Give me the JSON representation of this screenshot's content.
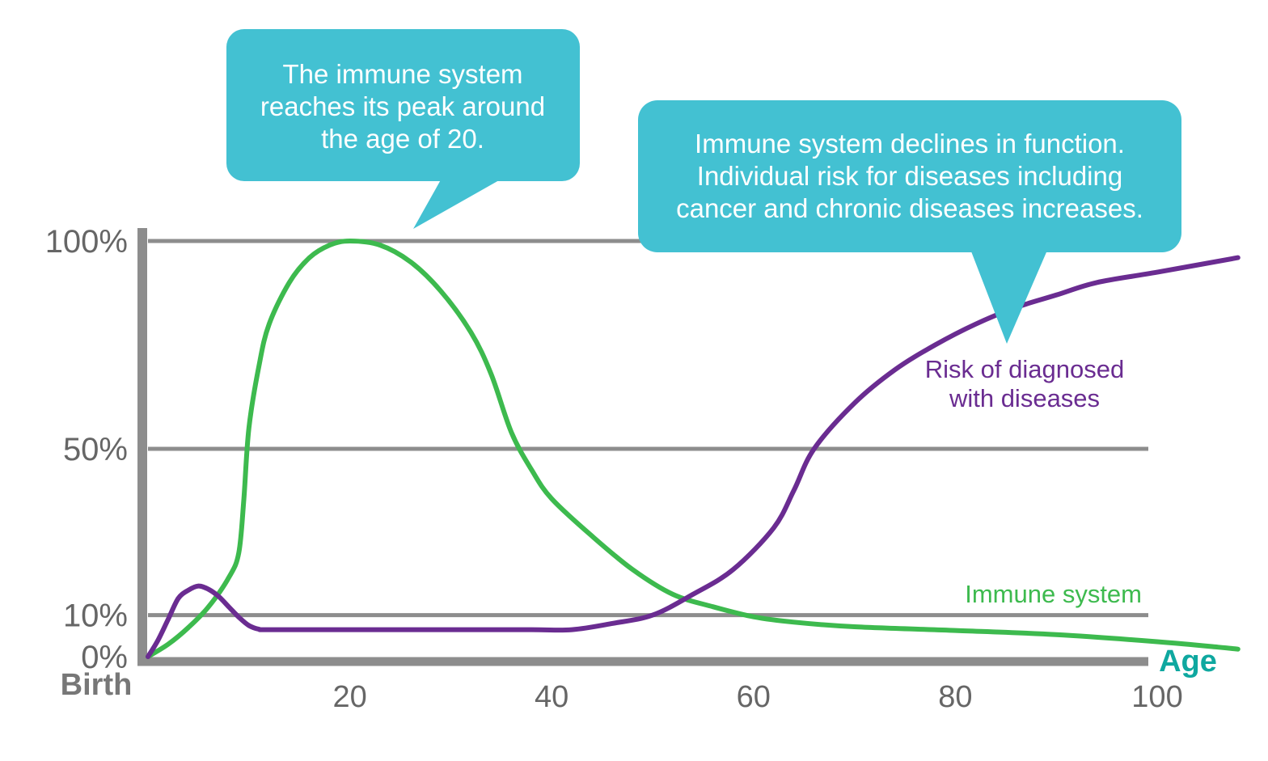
{
  "chart_data": {
    "type": "line",
    "xlabel": "Age",
    "x_origin_label": "Birth",
    "xlim": [
      0,
      108
    ],
    "ylim": [
      0,
      100
    ],
    "x_ticks": [
      20,
      40,
      60,
      80,
      100
    ],
    "x_tick_labels": [
      "20",
      "40",
      "60",
      "80",
      "100"
    ],
    "y_ticks": [
      0,
      10,
      50,
      100
    ],
    "y_tick_labels": [
      "0%",
      "10%",
      "50%",
      "100%"
    ],
    "grid": true,
    "series": [
      {
        "name": "Immune system",
        "color": "#3dba4e",
        "points": [
          [
            0,
            0
          ],
          [
            2,
            3
          ],
          [
            4,
            7
          ],
          [
            6,
            12
          ],
          [
            8,
            19
          ],
          [
            9,
            25
          ],
          [
            9.5,
            38
          ],
          [
            10,
            55
          ],
          [
            11,
            70
          ],
          [
            12,
            80
          ],
          [
            14,
            90
          ],
          [
            16,
            96
          ],
          [
            18,
            99
          ],
          [
            20,
            100
          ],
          [
            23,
            99
          ],
          [
            26,
            95
          ],
          [
            29,
            88
          ],
          [
            32,
            78
          ],
          [
            34,
            68
          ],
          [
            36,
            54
          ],
          [
            38,
            45
          ],
          [
            40,
            38
          ],
          [
            44,
            29
          ],
          [
            48,
            21
          ],
          [
            52,
            15
          ],
          [
            56,
            12
          ],
          [
            60,
            9.6
          ],
          [
            64,
            8.3
          ],
          [
            70,
            7.2
          ],
          [
            80,
            6.3
          ],
          [
            90,
            5.3
          ],
          [
            100,
            3.6
          ],
          [
            106,
            2.3
          ],
          [
            108,
            1.8
          ]
        ]
      },
      {
        "name": "Risk of diagnosed with diseases",
        "color": "#6a2c91",
        "points": [
          [
            0,
            0
          ],
          [
            1,
            4
          ],
          [
            2,
            9
          ],
          [
            3,
            14
          ],
          [
            4,
            16
          ],
          [
            5,
            17
          ],
          [
            6,
            16.2
          ],
          [
            7,
            14.5
          ],
          [
            8,
            12
          ],
          [
            9,
            9.5
          ],
          [
            10,
            7.5
          ],
          [
            11,
            6.6
          ],
          [
            12,
            6.5
          ],
          [
            20,
            6.5
          ],
          [
            30,
            6.5
          ],
          [
            38,
            6.5
          ],
          [
            42,
            6.5
          ],
          [
            46,
            8
          ],
          [
            50,
            10
          ],
          [
            54,
            15
          ],
          [
            58,
            21
          ],
          [
            62,
            31
          ],
          [
            64,
            40
          ],
          [
            66,
            50
          ],
          [
            70,
            61
          ],
          [
            74,
            69
          ],
          [
            78,
            75
          ],
          [
            82,
            80
          ],
          [
            86,
            84
          ],
          [
            90,
            87
          ],
          [
            94,
            90
          ],
          [
            100,
            92.5
          ],
          [
            108,
            96
          ]
        ]
      }
    ],
    "annotations": [
      {
        "id": "peak",
        "lines": [
          "The immune system",
          "reaches its peak around",
          "the age of 20."
        ],
        "color": "#43c1d2"
      },
      {
        "id": "decline",
        "lines": [
          "Immune system declines in function.",
          "Individual risk for diseases including",
          "cancer and chronic diseases increases."
        ],
        "color": "#43c1d2"
      }
    ],
    "colors": {
      "axis": "#8d8d8d",
      "grid": "#8d8d8d",
      "age_label": "#0fa8a0"
    }
  },
  "series_labels": {
    "immune": "Immune system",
    "risk_line1": "Risk of diagnosed",
    "risk_line2": "with diseases"
  }
}
